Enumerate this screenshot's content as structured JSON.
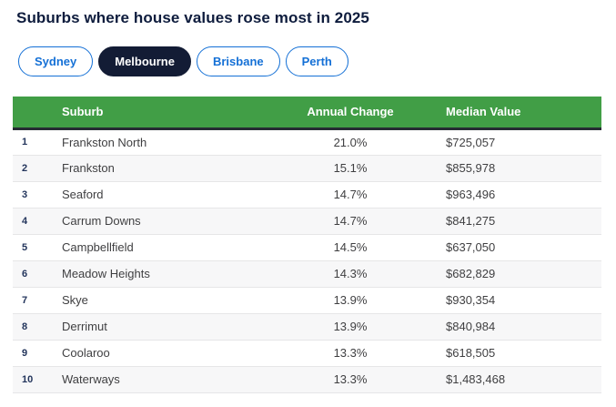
{
  "page": {
    "title": "Suburbs where house values rose most in 2025"
  },
  "tabs": [
    {
      "label": "Sydney",
      "active": false
    },
    {
      "label": "Melbourne",
      "active": true
    },
    {
      "label": "Brisbane",
      "active": false
    },
    {
      "label": "Perth",
      "active": false
    }
  ],
  "table": {
    "columns": [
      "Suburb",
      "Annual Change",
      "Median Value"
    ],
    "rows": [
      {
        "rank": "1",
        "suburb": "Frankston North",
        "annual_change": "21.0%",
        "median_value": "$725,057"
      },
      {
        "rank": "2",
        "suburb": "Frankston",
        "annual_change": "15.1%",
        "median_value": "$855,978"
      },
      {
        "rank": "3",
        "suburb": "Seaford",
        "annual_change": "14.7%",
        "median_value": "$963,496"
      },
      {
        "rank": "4",
        "suburb": "Carrum Downs",
        "annual_change": "14.7%",
        "median_value": "$841,275"
      },
      {
        "rank": "5",
        "suburb": "Campbellfield",
        "annual_change": "14.5%",
        "median_value": "$637,050"
      },
      {
        "rank": "6",
        "suburb": "Meadow Heights",
        "annual_change": "14.3%",
        "median_value": "$682,829"
      },
      {
        "rank": "7",
        "suburb": "Skye",
        "annual_change": "13.9%",
        "median_value": "$930,354"
      },
      {
        "rank": "8",
        "suburb": "Derrimut",
        "annual_change": "13.9%",
        "median_value": "$840,984"
      },
      {
        "rank": "9",
        "suburb": "Coolaroo",
        "annual_change": "13.3%",
        "median_value": "$618,505"
      },
      {
        "rank": "10",
        "suburb": "Waterways",
        "annual_change": "13.3%",
        "median_value": "$1,483,468"
      }
    ]
  },
  "colors": {
    "header_green": "#419e46",
    "header_underline": "#262b33",
    "accent_blue": "#1470d6",
    "active_tab_navy": "#131c35",
    "title_navy": "#0e1c3d"
  }
}
